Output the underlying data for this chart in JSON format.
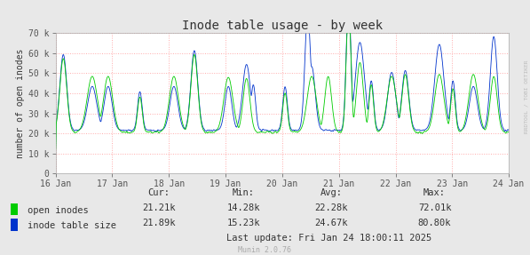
{
  "title": "Inode table usage - by week",
  "ylabel": "number of open inodes",
  "bg_color": "#e8e8e8",
  "plot_bg_color": "#ffffff",
  "grid_color": "#ffaaaa",
  "green_color": "#00cc00",
  "blue_color": "#0033cc",
  "legend_items": [
    "open inodes",
    "inode table size"
  ],
  "x_labels": [
    "16 Jan",
    "17 Jan",
    "18 Jan",
    "19 Jan",
    "20 Jan",
    "21 Jan",
    "22 Jan",
    "23 Jan",
    "24 Jan"
  ],
  "ylim": [
    0,
    70000
  ],
  "yticks": [
    0,
    10000,
    20000,
    30000,
    40000,
    50000,
    60000,
    70000
  ],
  "ytick_labels": [
    "0",
    "10 k",
    "20 k",
    "30 k",
    "40 k",
    "50 k",
    "60 k",
    "70 k"
  ],
  "cur_label": "Cur:",
  "min_label": "Min:",
  "avg_label": "Avg:",
  "max_label": "Max:",
  "green_cur": "21.21k",
  "green_min": "14.28k",
  "green_avg": "22.28k",
  "green_max": "72.01k",
  "blue_cur": "21.89k",
  "blue_min": "15.23k",
  "blue_avg": "24.67k",
  "blue_max": "80.80k",
  "last_update": "Last update: Fri Jan 24 18:00:11 2025",
  "munin_version": "Munin 2.0.76",
  "watermark": "RRDTOOL / TOBI OETIKER",
  "n_points": 800
}
